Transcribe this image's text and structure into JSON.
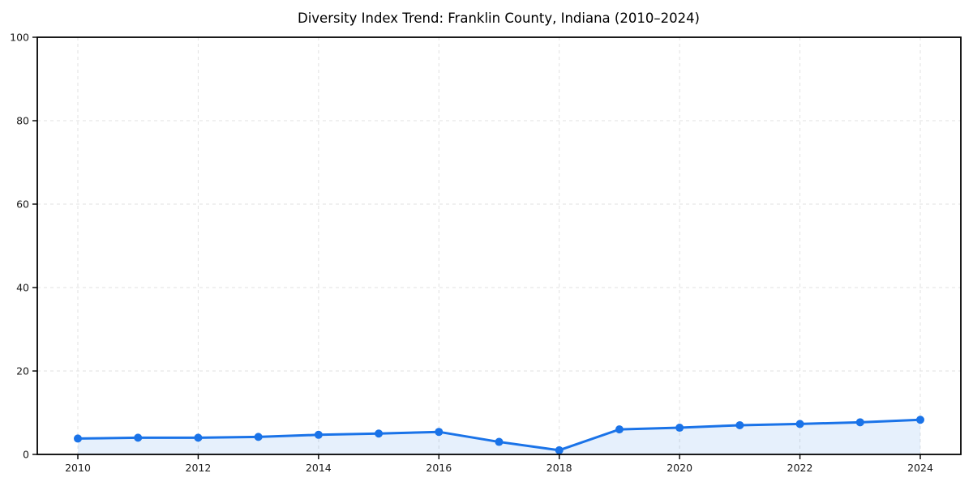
{
  "chart_data": {
    "type": "area",
    "title": "Diversity Index Trend: Franklin County, Indiana (2010–2024)",
    "xlabel": "",
    "ylabel": "",
    "x": [
      2010,
      2011,
      2012,
      2013,
      2014,
      2015,
      2016,
      2017,
      2018,
      2019,
      2020,
      2021,
      2022,
      2023,
      2024
    ],
    "values": [
      3.8,
      4.0,
      4.0,
      4.2,
      4.7,
      5.0,
      5.4,
      3.0,
      1.0,
      6.0,
      6.4,
      7.0,
      7.3,
      7.7,
      8.3
    ],
    "series_name": "Diversity Index",
    "xlim": [
      2010,
      2024
    ],
    "ylim": [
      0,
      100
    ],
    "xticks": [
      2010,
      2012,
      2014,
      2016,
      2018,
      2020,
      2022,
      2024
    ],
    "yticks": [
      0,
      20,
      40,
      60,
      80,
      100
    ],
    "grid": true,
    "legend": false,
    "colors": {
      "line": "#1a73e8",
      "marker": "#1a73e8",
      "fill": "#1a73e8",
      "fill_opacity": 0.11,
      "gridline": "#e2e2e2",
      "spine": "#000000",
      "tick_text": "#1a1a1a",
      "background": "#ffffff"
    }
  }
}
